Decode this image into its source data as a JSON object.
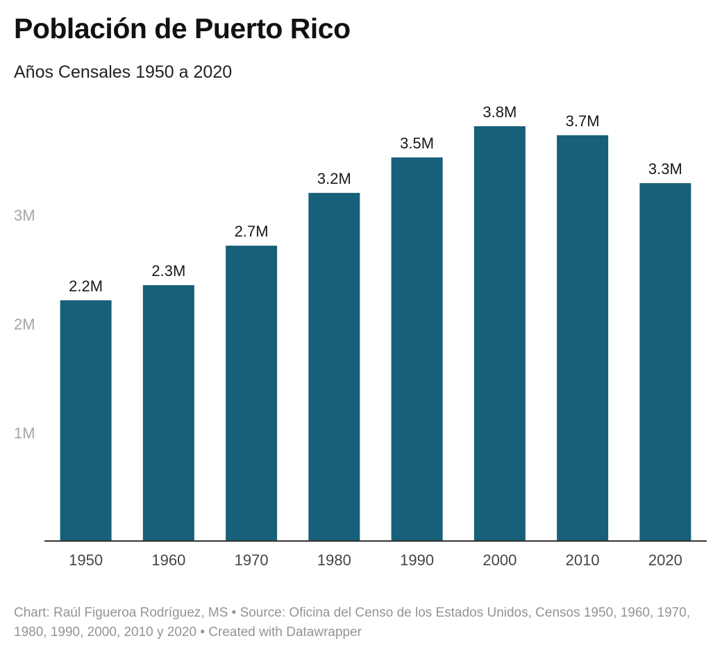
{
  "header": {
    "title": "Población de Puerto Rico",
    "subtitle": "Años Censales 1950 a 2020"
  },
  "colors": {
    "bar": "#176079",
    "axis_line": "#333333",
    "tick_label": "#a6a6a6",
    "category_label": "#444444",
    "value_label": "#181818"
  },
  "chart_data": {
    "type": "bar",
    "title": "Población de Puerto Rico",
    "subtitle": "Años Censales 1950 a 2020",
    "xlabel": "",
    "ylabel": "",
    "categories": [
      "1950",
      "1960",
      "1970",
      "1980",
      "1990",
      "2000",
      "2010",
      "2020"
    ],
    "values": [
      2210703,
      2349544,
      2712033,
      3196520,
      3522037,
      3808610,
      3725789,
      3285874
    ],
    "value_labels": [
      "2.2M",
      "2.3M",
      "2.7M",
      "3.2M",
      "3.5M",
      "3.8M",
      "3.7M",
      "3.3M"
    ],
    "ylim": [
      0,
      3808610
    ],
    "yticks": [
      1000000,
      2000000,
      3000000
    ],
    "ytick_labels": [
      "1M",
      "2M",
      "3M"
    ],
    "grid": false
  },
  "footer": {
    "credit": "Chart: Raúl Figueroa Rodríguez, MS • Source: Oficina del Censo de los Estados Unidos, Censos 1950, 1960, 1970, 1980, 1990, 2000, 2010 y 2020 • Created with Datawrapper"
  }
}
